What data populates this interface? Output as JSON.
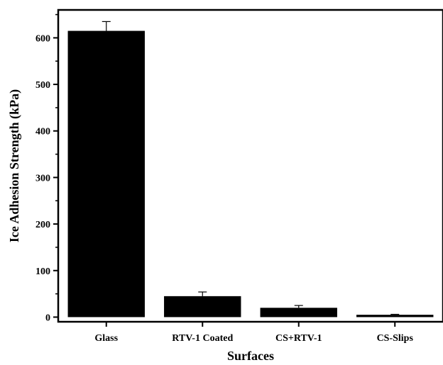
{
  "chart_data": {
    "type": "bar",
    "title": "",
    "xlabel": "Surfaces",
    "ylabel": "Ice Adhesion Strength (kPa)",
    "categories": [
      "Glass",
      "RTV-1 Coated",
      "CS+RTV-1",
      "CS-Slips"
    ],
    "values": [
      615,
      45,
      20,
      5
    ],
    "errors": [
      20,
      9,
      5,
      1
    ],
    "ylim": [
      -10,
      660
    ],
    "yticks": [
      0,
      100,
      200,
      300,
      400,
      500,
      600
    ],
    "ytick_labels": [
      "0",
      "100",
      "200",
      "300",
      "400",
      "500",
      "600"
    ],
    "bar_color": "#000000",
    "grid": false,
    "legend": "none"
  }
}
